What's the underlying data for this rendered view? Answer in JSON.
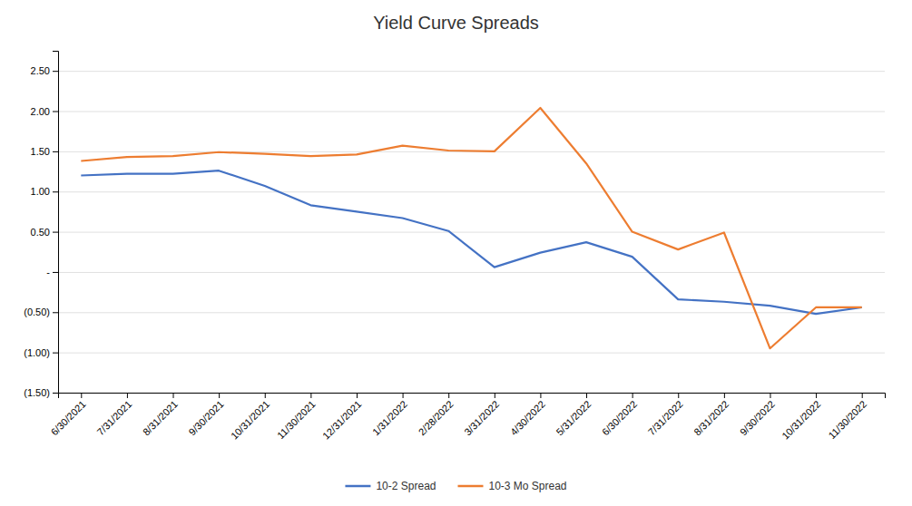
{
  "chart_data": {
    "type": "line",
    "title": "Yield Curve Spreads",
    "categories": [
      "6/30/2021",
      "7/31/2021",
      "8/31/2021",
      "9/30/2021",
      "10/31/2021",
      "11/30/2021",
      "12/31/2021",
      "1/31/2022",
      "2/28/2022",
      "3/31/2022",
      "4/30/2022",
      "5/31/2022",
      "6/30/2022",
      "7/31/2022",
      "8/31/2022",
      "9/30/2022",
      "10/31/2022",
      "11/30/2022"
    ],
    "series": [
      {
        "name": "10-2 Spread",
        "color": "#4472C4",
        "values": [
          1.2,
          1.22,
          1.22,
          1.26,
          1.07,
          0.83,
          0.75,
          0.67,
          0.51,
          0.06,
          0.24,
          0.37,
          0.19,
          -0.34,
          -0.37,
          -0.42,
          -0.52,
          -0.44
        ]
      },
      {
        "name": "10-3 Mo Spread",
        "color": "#ED7D31",
        "values": [
          1.38,
          1.43,
          1.44,
          1.49,
          1.47,
          1.44,
          1.46,
          1.57,
          1.51,
          1.5,
          2.04,
          1.35,
          0.5,
          0.28,
          0.49,
          -0.95,
          -0.44,
          -0.44
        ]
      }
    ],
    "ylim": [
      -1.5,
      2.75
    ],
    "yticks": [
      {
        "value": -1.5,
        "label": "(1.50)"
      },
      {
        "value": -1.0,
        "label": "(1.00)"
      },
      {
        "value": -0.5,
        "label": "(0.50)"
      },
      {
        "value": 0,
        "label": "-"
      },
      {
        "value": 0.5,
        "label": "0.50"
      },
      {
        "value": 1.0,
        "label": "1.00"
      },
      {
        "value": 1.5,
        "label": "1.50"
      },
      {
        "value": 2.0,
        "label": "2.00"
      },
      {
        "value": 2.5,
        "label": "2.50"
      }
    ],
    "grid": true,
    "legend": "bottom"
  }
}
